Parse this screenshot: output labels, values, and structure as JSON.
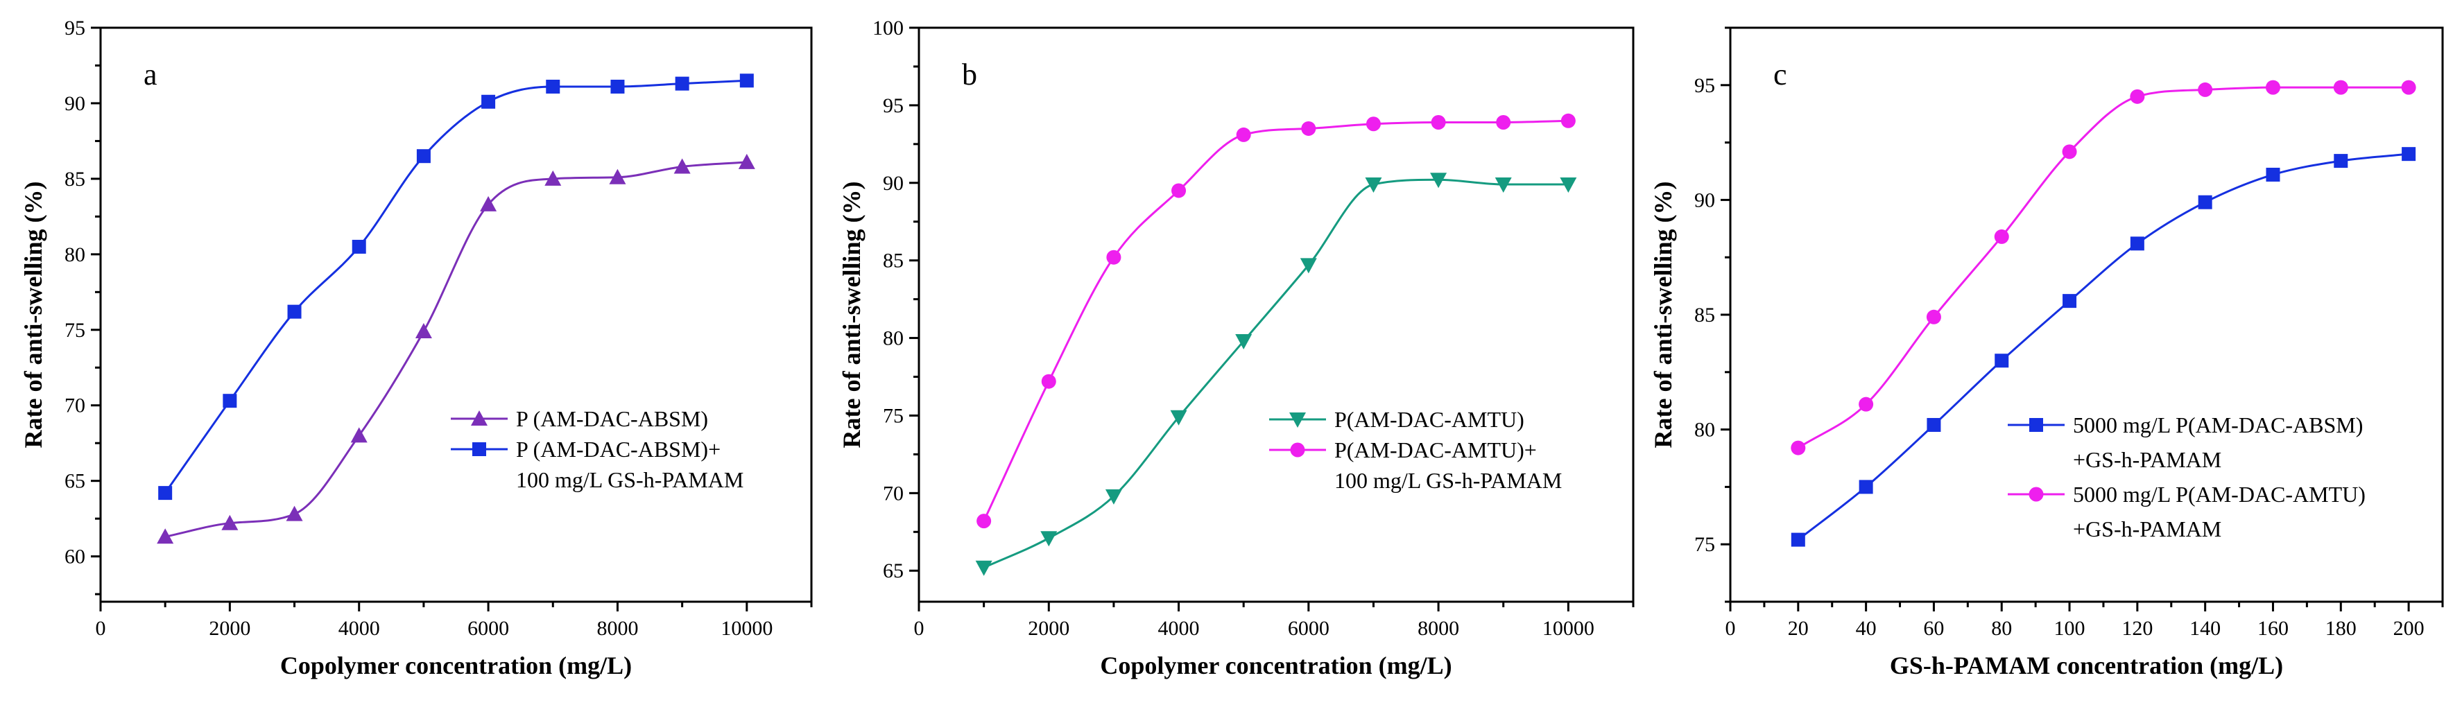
{
  "chart_data": [
    {
      "type": "line",
      "panel_label": "a",
      "xlabel": "Copolymer concentration (mg/L)",
      "ylabel": "Rate of anti-swelling (%)",
      "xlim": [
        0,
        11000
      ],
      "ylim": [
        57,
        95
      ],
      "xticks": [
        0,
        2000,
        4000,
        6000,
        8000,
        10000
      ],
      "xtick_labels": [
        "0",
        "2000",
        "4000",
        "6000",
        "8000",
        "10000"
      ],
      "yticks": [
        60,
        65,
        70,
        75,
        80,
        85,
        90,
        95
      ],
      "ytick_labels": [
        "60",
        "65",
        "70",
        "75",
        "80",
        "85",
        "90",
        "95"
      ],
      "legend_position": "lower-right",
      "series": [
        {
          "name_lines": [
            "P (AM-DAC-ABSM)"
          ],
          "color": "#7b2fb8",
          "marker": "triangle-up",
          "x": [
            1000,
            2000,
            3000,
            4000,
            5000,
            6000,
            7000,
            8000,
            9000,
            10000
          ],
          "values": [
            61.3,
            62.2,
            62.8,
            68.0,
            74.9,
            83.3,
            85.0,
            85.1,
            85.8,
            86.1
          ]
        },
        {
          "name_lines": [
            "P (AM-DAC-ABSM)+",
            "100 mg/L GS-h-PAMAM"
          ],
          "color": "#1530e0",
          "marker": "square",
          "x": [
            1000,
            2000,
            3000,
            4000,
            5000,
            6000,
            7000,
            8000,
            9000,
            10000
          ],
          "values": [
            64.2,
            70.3,
            76.2,
            80.5,
            86.5,
            90.1,
            91.1,
            91.1,
            91.3,
            91.5
          ]
        }
      ]
    },
    {
      "type": "line",
      "panel_label": "b",
      "xlabel": "Copolymer concentration (mg/L)",
      "ylabel": "Rate of anti-swelling (%)",
      "xlim": [
        0,
        11000
      ],
      "ylim": [
        63,
        100
      ],
      "xticks": [
        0,
        2000,
        4000,
        6000,
        8000,
        10000
      ],
      "xtick_labels": [
        "0",
        "2000",
        "4000",
        "6000",
        "8000",
        "10000"
      ],
      "yticks": [
        65,
        70,
        75,
        80,
        85,
        90,
        95,
        100
      ],
      "ytick_labels": [
        "65",
        "70",
        "75",
        "80",
        "85",
        "90",
        "95",
        "100"
      ],
      "legend_position": "lower-right",
      "series": [
        {
          "name_lines": [
            "P(AM-DAC-AMTU)"
          ],
          "color": "#159b80",
          "marker": "triangle-down",
          "x": [
            1000,
            2000,
            3000,
            4000,
            5000,
            6000,
            7000,
            8000,
            9000,
            10000
          ],
          "values": [
            65.2,
            67.1,
            69.8,
            74.9,
            79.8,
            84.7,
            89.9,
            90.2,
            89.9,
            89.9
          ]
        },
        {
          "name_lines": [
            "P(AM-DAC-AMTU)+",
            "100 mg/L GS-h-PAMAM"
          ],
          "color": "#ee1fee",
          "marker": "circle",
          "x": [
            1000,
            2000,
            3000,
            4000,
            5000,
            6000,
            7000,
            8000,
            9000,
            10000
          ],
          "values": [
            68.2,
            77.2,
            85.2,
            89.5,
            93.1,
            93.5,
            93.8,
            93.9,
            93.9,
            94.0
          ]
        }
      ]
    },
    {
      "type": "line",
      "panel_label": "c",
      "xlabel": "GS-h-PAMAM concentration (mg/L)",
      "ylabel": "Rate of anti-swelling (%)",
      "xlim": [
        0,
        210
      ],
      "ylim": [
        72.5,
        97.5
      ],
      "xticks": [
        0,
        20,
        40,
        60,
        80,
        100,
        120,
        140,
        160,
        180,
        200
      ],
      "xtick_labels": [
        "0",
        "20",
        "40",
        "60",
        "80",
        "100",
        "120",
        "140",
        "160",
        "180",
        "200"
      ],
      "yticks": [
        75,
        80,
        85,
        90,
        95
      ],
      "ytick_labels": [
        "75",
        "80",
        "85",
        "90",
        "95"
      ],
      "legend_position": "lower-right",
      "series": [
        {
          "name_lines": [
            "5000 mg/L P(AM-DAC-ABSM)",
            "+GS-h-PAMAM"
          ],
          "color": "#1530e0",
          "marker": "square",
          "x": [
            20,
            40,
            60,
            80,
            100,
            120,
            140,
            160,
            180,
            200
          ],
          "values": [
            75.2,
            77.5,
            80.2,
            83.0,
            85.6,
            88.1,
            89.9,
            91.1,
            91.7,
            92.0
          ]
        },
        {
          "name_lines": [
            "5000 mg/L P(AM-DAC-AMTU)",
            "+GS-h-PAMAM"
          ],
          "color": "#ee1fee",
          "marker": "circle",
          "x": [
            20,
            40,
            60,
            80,
            100,
            120,
            140,
            160,
            180,
            200
          ],
          "values": [
            79.2,
            81.1,
            84.9,
            88.4,
            92.1,
            94.5,
            94.8,
            94.9,
            94.9,
            94.9
          ]
        }
      ]
    }
  ]
}
